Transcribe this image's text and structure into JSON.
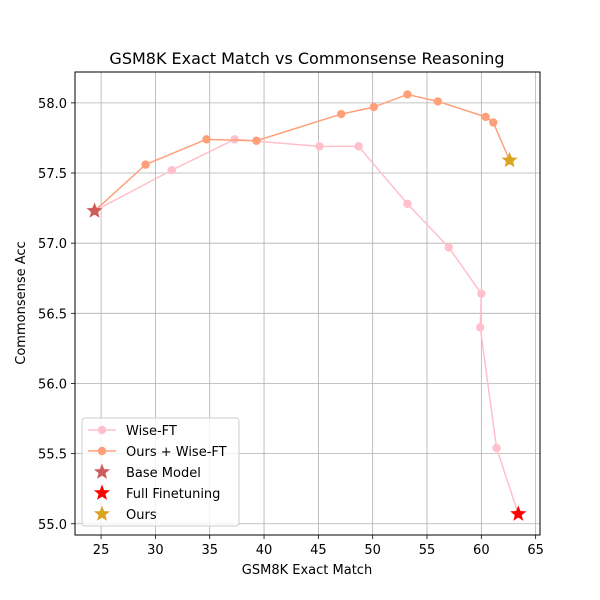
{
  "chart_data": {
    "type": "line",
    "title": "GSM8K Exact Match vs Commonsense Reasoning",
    "xlabel": "GSM8K Exact Match",
    "ylabel": "Commonsense Acc",
    "xlim": [
      22.6,
      65.4
    ],
    "ylim": [
      54.92,
      58.22
    ],
    "xticks": [
      25,
      30,
      35,
      40,
      45,
      50,
      55,
      60,
      65
    ],
    "yticks": [
      55.0,
      55.5,
      56.0,
      56.5,
      57.0,
      57.5,
      58.0
    ],
    "grid": true,
    "legend_position": "lower-left",
    "series": [
      {
        "name": "Wise-FT",
        "kind": "line",
        "color": "#ffc0cb",
        "marker": "circle",
        "x": [
          24.4,
          31.5,
          37.3,
          45.1,
          48.7,
          53.2,
          57.0,
          60.0,
          59.9,
          61.4,
          63.4
        ],
        "y": [
          57.23,
          57.52,
          57.74,
          57.69,
          57.69,
          57.28,
          56.97,
          56.64,
          56.4,
          55.54,
          55.07
        ]
      },
      {
        "name": "Ours + Wise-FT",
        "kind": "line",
        "color": "#ffa07a",
        "marker": "circle",
        "x": [
          24.4,
          29.1,
          34.7,
          39.3,
          47.1,
          50.1,
          53.2,
          56.0,
          60.4,
          61.1,
          62.6
        ],
        "y": [
          57.23,
          57.56,
          57.74,
          57.73,
          57.92,
          57.97,
          58.06,
          58.01,
          57.9,
          57.86,
          57.59
        ]
      },
      {
        "name": "Base Model",
        "kind": "star",
        "color": "#cd5c5c",
        "x": [
          24.4
        ],
        "y": [
          57.23
        ]
      },
      {
        "name": "Full Finetuning",
        "kind": "star",
        "color": "#ff0000",
        "x": [
          63.4
        ],
        "y": [
          55.07
        ]
      },
      {
        "name": "Ours",
        "kind": "star",
        "color": "#daa520",
        "x": [
          62.6
        ],
        "y": [
          57.59
        ]
      }
    ]
  }
}
